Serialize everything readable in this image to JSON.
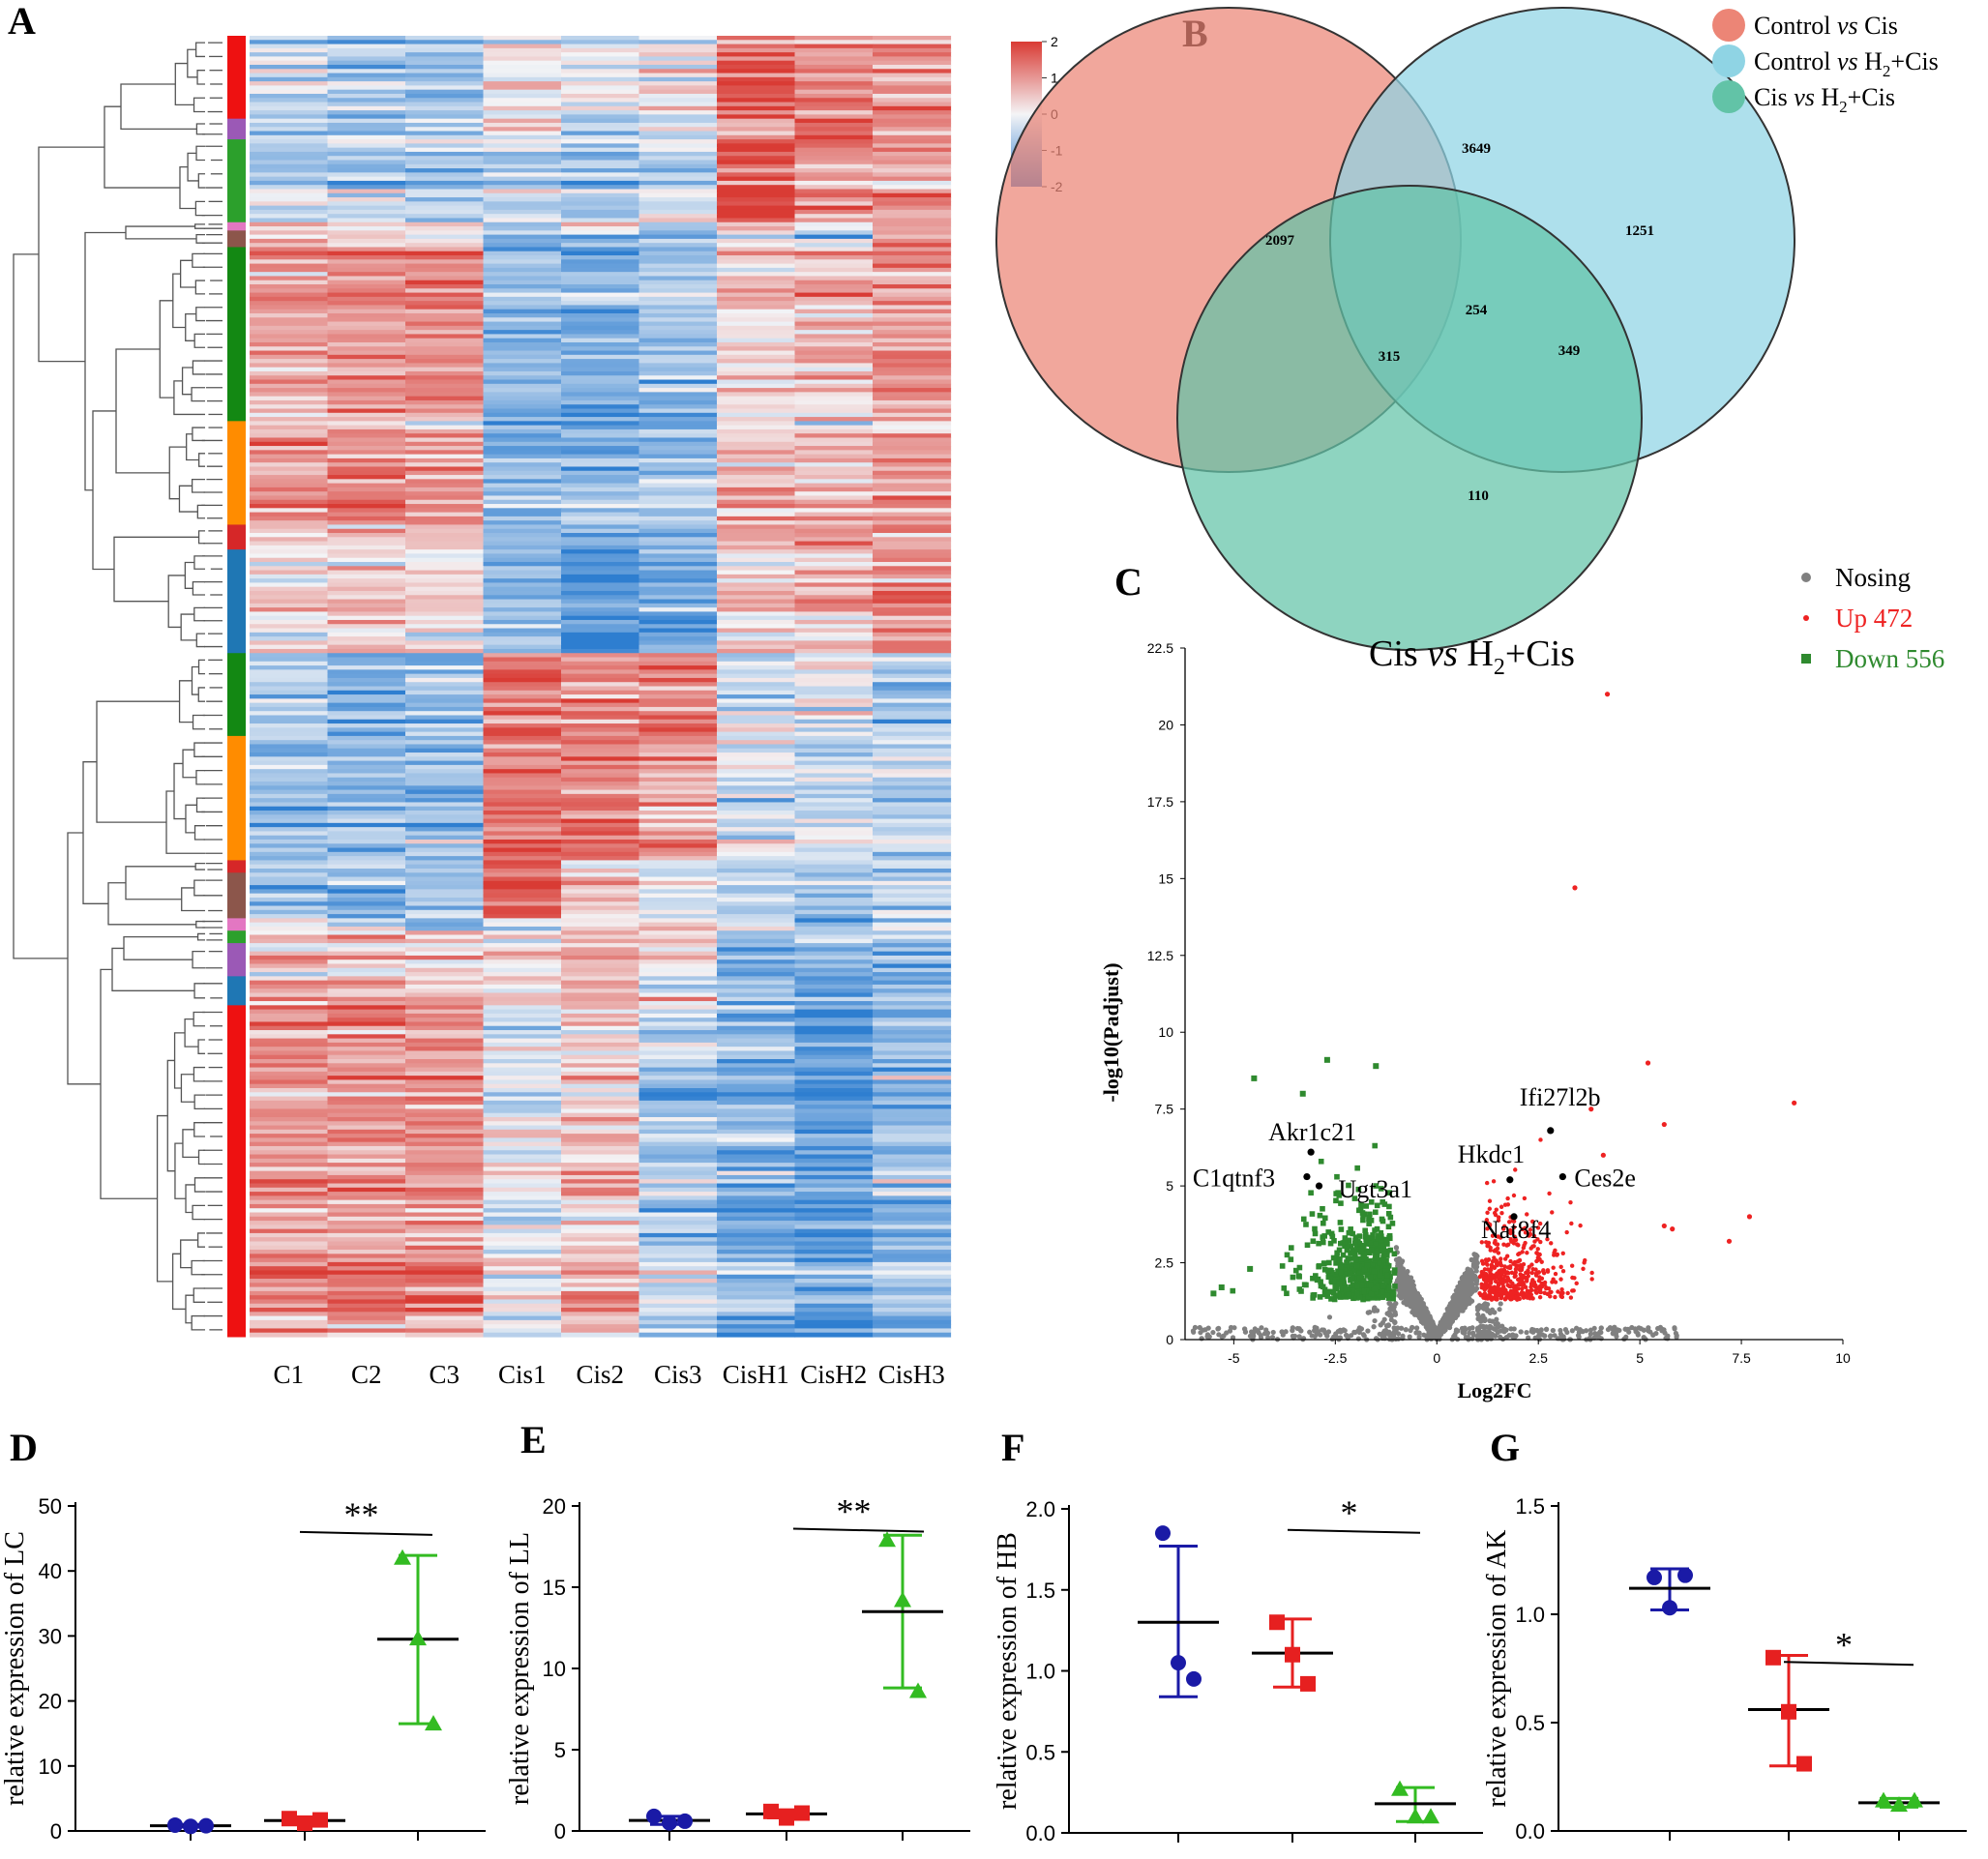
{
  "panels": {
    "A": "A",
    "B": "B",
    "C": "C",
    "D": "D",
    "E": "E",
    "F": "F",
    "G": "G"
  },
  "colors": {
    "heat_low": "#2e7ed0",
    "heat_mid": "#f4f4f6",
    "heat_high": "#d93b34",
    "venn_a": "#ec8576",
    "venn_b": "#8fd4e4",
    "venn_c": "#62c3a7",
    "up": "#ee2222",
    "down": "#2f8a2f",
    "nosig": "#808080",
    "blue_group": "#1a1aa6",
    "red_group": "#e62020",
    "green_group": "#33bb22"
  },
  "heatmap": {
    "columns": [
      "C1",
      "C2",
      "C3",
      "Cis1",
      "Cis2",
      "Cis3",
      "CisH1",
      "CisH2",
      "CisH3"
    ],
    "scale_ticks": [
      "2",
      "1",
      "0",
      "-1",
      "-2"
    ],
    "scale_values": [
      2,
      1,
      0,
      -1,
      -2
    ],
    "clusters": [
      {
        "color": "#ee1111",
        "rows": 20,
        "pattern": [
          -0.6,
          -0.7,
          -0.9,
          0.1,
          -0.3,
          0.0,
          1.6,
          1.0,
          0.9
        ]
      },
      {
        "color": "#9b59b6",
        "rows": 5,
        "pattern": [
          -0.4,
          -0.5,
          -0.6,
          0.3,
          -0.8,
          -0.3,
          0.9,
          1.5,
          0.9
        ]
      },
      {
        "color": "#2ca02c",
        "rows": 20,
        "pattern": [
          -0.5,
          -0.8,
          -0.6,
          -0.5,
          -0.7,
          -0.4,
          1.8,
          1.1,
          1.0
        ]
      },
      {
        "color": "#e377c2",
        "rows": 2,
        "pattern": [
          0.6,
          0.3,
          0.3,
          -1.0,
          0.5,
          -0.8,
          0.3,
          0.1,
          0.6
        ]
      },
      {
        "color": "#8c564b",
        "rows": 4,
        "pattern": [
          0.8,
          0.6,
          0.5,
          -1.2,
          -0.8,
          -0.8,
          0.4,
          -0.4,
          1.0
        ]
      },
      {
        "color": "#138813",
        "rows": 42,
        "pattern": [
          0.8,
          1.0,
          1.0,
          -1.0,
          -1.4,
          -0.9,
          0.2,
          0.6,
          1.0
        ]
      },
      {
        "color": "#ff8c00",
        "rows": 25,
        "pattern": [
          0.9,
          1.0,
          0.8,
          -1.1,
          -1.0,
          -0.9,
          0.5,
          0.4,
          0.7
        ]
      },
      {
        "color": "#d62728",
        "rows": 6,
        "pattern": [
          0.2,
          0.3,
          0.5,
          -1.0,
          -1.5,
          -0.8,
          0.7,
          1.0,
          0.8
        ]
      },
      {
        "color": "#1f77b4",
        "rows": 25,
        "pattern": [
          0.3,
          0.4,
          0.3,
          -0.9,
          -1.7,
          -1.1,
          0.5,
          0.6,
          1.3
        ]
      },
      {
        "color": "#138813",
        "rows": 20,
        "pattern": [
          -0.7,
          -1.3,
          -1.1,
          1.2,
          1.1,
          1.1,
          -0.5,
          -0.3,
          -0.8
        ]
      },
      {
        "color": "#ff8c00",
        "rows": 30,
        "pattern": [
          -1.0,
          -1.0,
          -1.1,
          1.3,
          1.2,
          0.8,
          -0.3,
          -0.4,
          -0.6
        ]
      },
      {
        "color": "#d62728",
        "rows": 3,
        "pattern": [
          -0.6,
          -0.4,
          -0.9,
          1.6,
          0.5,
          -0.3,
          -0.5,
          -0.4,
          -0.6
        ]
      },
      {
        "color": "#8c564b",
        "rows": 11,
        "pattern": [
          -0.8,
          -0.9,
          -0.7,
          1.9,
          0.6,
          -0.2,
          -0.2,
          -0.5,
          -0.3
        ]
      },
      {
        "color": "#e377c2",
        "rows": 3,
        "pattern": [
          0.2,
          -0.3,
          -1.0,
          0.2,
          0.3,
          1.0,
          -0.3,
          -0.6,
          -0.4
        ]
      },
      {
        "color": "#2ca02c",
        "rows": 3,
        "pattern": [
          0.6,
          0.4,
          0.3,
          -0.1,
          0.5,
          0.1,
          -1.0,
          -0.6,
          -0.7
        ]
      },
      {
        "color": "#9b59b6",
        "rows": 8,
        "pattern": [
          0.7,
          0.6,
          0.5,
          0.6,
          0.9,
          0.2,
          -1.1,
          -1.0,
          -1.2
        ]
      },
      {
        "color": "#1f77b4",
        "rows": 7,
        "pattern": [
          0.8,
          0.7,
          0.6,
          0.1,
          0.5,
          -0.2,
          -1.0,
          -1.3,
          -1.0
        ]
      },
      {
        "color": "#ee1111",
        "rows": 80,
        "pattern": [
          1.0,
          1.0,
          1.0,
          -0.3,
          0.5,
          -0.7,
          -1.2,
          -1.5,
          -1.0
        ]
      }
    ]
  },
  "venn": {
    "legend": [
      {
        "prefix": "Control ",
        "vs": "vs",
        "suffix": "  Cis",
        "sub": ""
      },
      {
        "prefix": "Control ",
        "vs": "vs",
        "suffix": "  H",
        "sub": "2",
        "post": "+Cis"
      },
      {
        "prefix": "Cis ",
        "vs": "vs",
        "suffix": "  H",
        "sub": "2",
        "post": "+Cis"
      }
    ],
    "counts": {
      "a_only": "2097",
      "ab": "3649",
      "b_only": "1251",
      "abc": "254",
      "ac": "315",
      "bc": "349",
      "c_only": "110"
    }
  },
  "volcano": {
    "title_pre": "Cis ",
    "title_vs": "vs",
    "title_mid": " H",
    "title_sub": "2",
    "title_post": "+Cis",
    "legend": {
      "nosig": "Nosing",
      "up": "Up  472",
      "down": "Down 556"
    },
    "chart_data": {
      "type": "scatter",
      "xlabel": "Log2FC",
      "ylabel": "-log10(Padjust)",
      "xlim": [
        -6.2,
        10
      ],
      "ylim": [
        0,
        22.5
      ],
      "x_ticks": [
        -5,
        -2.5,
        0,
        2.5,
        5,
        7.5,
        10
      ],
      "x_tick_labels": [
        "-5",
        "-2.5",
        "0",
        "2.5",
        "5",
        "7.5",
        "10"
      ],
      "y_ticks": [
        0,
        2.5,
        5,
        7.5,
        10,
        12.5,
        15,
        17.5,
        20,
        22.5
      ],
      "y_tick_labels": [
        "0",
        "2.5",
        "5",
        "7.5",
        "10",
        "12.5",
        "15",
        "17.5",
        "20",
        "22.5"
      ],
      "up_highlights": [
        {
          "x": 4.2,
          "y": 21.0
        },
        {
          "x": 3.4,
          "y": 14.7
        },
        {
          "x": 8.8,
          "y": 7.7
        },
        {
          "x": 5.2,
          "y": 9.0
        },
        {
          "x": 7.7,
          "y": 4.0
        },
        {
          "x": 7.2,
          "y": 3.2
        },
        {
          "x": 5.6,
          "y": 3.7
        },
        {
          "x": 3.8,
          "y": 7.5
        },
        {
          "x": 5.6,
          "y": 7.0
        },
        {
          "x": 4.1,
          "y": 6.0
        },
        {
          "x": 5.8,
          "y": 3.6
        }
      ],
      "down_highlights": [
        {
          "x": -2.7,
          "y": 9.1
        },
        {
          "x": -1.5,
          "y": 8.9
        },
        {
          "x": -4.5,
          "y": 8.5
        },
        {
          "x": -3.3,
          "y": 8.0
        },
        {
          "x": -5.3,
          "y": 1.7
        },
        {
          "x": -4.6,
          "y": 2.3
        },
        {
          "x": -5.5,
          "y": 1.5
        }
      ],
      "labeled_genes": [
        {
          "name": "Akr1c21",
          "x": -3.1,
          "y": 6.1
        },
        {
          "name": "C1qtnf3",
          "x": -3.2,
          "y": 5.3
        },
        {
          "name": "Ugt3a1",
          "x": -2.9,
          "y": 5.0
        },
        {
          "name": "Ifi27l2b",
          "x": 2.8,
          "y": 6.8
        },
        {
          "name": "Hkdc1",
          "x": 1.8,
          "y": 5.2
        },
        {
          "name": "Ces2e",
          "x": 3.1,
          "y": 5.3
        },
        {
          "name": "Nat8f4",
          "x": 1.9,
          "y": 4.0
        }
      ]
    }
  },
  "dotplots": [
    {
      "id": "D",
      "chart_data": {
        "type": "scatter",
        "ylabel": "relative expression of  LC",
        "ylim": [
          0,
          50
        ],
        "y_ticks": [
          0,
          10,
          20,
          30,
          40,
          50
        ],
        "y_tick_labels": [
          "0",
          "10",
          "20",
          "30",
          "40",
          "50"
        ],
        "significance": "**",
        "sig_y": 46,
        "groups": [
          {
            "points": [
              0.9,
              0.7,
              0.8
            ],
            "mean": 0.8,
            "low": 0.6,
            "high": 1.0,
            "marker": "circle"
          },
          {
            "points": [
              1.9,
              1.2,
              1.7
            ],
            "mean": 1.6,
            "low": 1.2,
            "high": 2.0,
            "marker": "square"
          },
          {
            "points": [
              42.0,
              29.6,
              16.5
            ],
            "mean": 29.5,
            "low": 16.5,
            "high": 42.4,
            "marker": "triangle"
          }
        ]
      }
    },
    {
      "id": "E",
      "chart_data": {
        "type": "scatter",
        "ylabel": "relative expression of  LL",
        "ylim": [
          0,
          20
        ],
        "y_ticks": [
          0,
          5,
          10,
          15,
          20
        ],
        "y_tick_labels": [
          "0",
          "5",
          "10",
          "15",
          "20"
        ],
        "significance": "**",
        "sig_y": 18.6,
        "groups": [
          {
            "points": [
              0.9,
              0.5,
              0.6
            ],
            "mean": 0.65,
            "low": 0.4,
            "high": 0.9,
            "marker": "circle"
          },
          {
            "points": [
              1.2,
              0.8,
              1.1
            ],
            "mean": 1.05,
            "low": 0.8,
            "high": 1.3,
            "marker": "square"
          },
          {
            "points": [
              17.9,
              14.2,
              8.6
            ],
            "mean": 13.5,
            "low": 8.8,
            "high": 18.2,
            "marker": "triangle"
          }
        ]
      }
    },
    {
      "id": "F",
      "chart_data": {
        "type": "scatter",
        "ylabel": "relative expression of  HB",
        "ylim": [
          0,
          2.0
        ],
        "y_ticks": [
          0,
          0.5,
          1.0,
          1.5,
          2.0
        ],
        "y_tick_labels": [
          "0.0",
          "0.5",
          "1.0",
          "1.5",
          "2.0"
        ],
        "significance": "*",
        "sig_y": 1.87,
        "groups": [
          {
            "points": [
              1.85,
              1.05,
              0.95
            ],
            "mean": 1.3,
            "low": 0.84,
            "high": 1.77,
            "marker": "circle"
          },
          {
            "points": [
              1.3,
              1.1,
              0.92
            ],
            "mean": 1.11,
            "low": 0.9,
            "high": 1.32,
            "marker": "square"
          },
          {
            "points": [
              0.27,
              0.1,
              0.1
            ],
            "mean": 0.18,
            "low": 0.07,
            "high": 0.28,
            "marker": "triangle"
          }
        ]
      }
    },
    {
      "id": "G",
      "chart_data": {
        "type": "scatter",
        "ylabel": "relative expression of  AK",
        "ylim": [
          0,
          1.5
        ],
        "y_ticks": [
          0,
          0.5,
          1.0,
          1.5
        ],
        "y_tick_labels": [
          "0.0",
          "0.5",
          "1.0",
          "1.5"
        ],
        "significance": "*",
        "sig_y": 0.78,
        "groups": [
          {
            "points": [
              1.17,
              1.03,
              1.18
            ],
            "mean": 1.12,
            "low": 1.02,
            "high": 1.21,
            "marker": "circle"
          },
          {
            "points": [
              0.8,
              0.55,
              0.31
            ],
            "mean": 0.56,
            "low": 0.3,
            "high": 0.81,
            "marker": "square"
          },
          {
            "points": [
              0.14,
              0.12,
              0.14
            ],
            "mean": 0.13,
            "low": 0.11,
            "high": 0.15,
            "marker": "triangle"
          }
        ]
      }
    }
  ]
}
